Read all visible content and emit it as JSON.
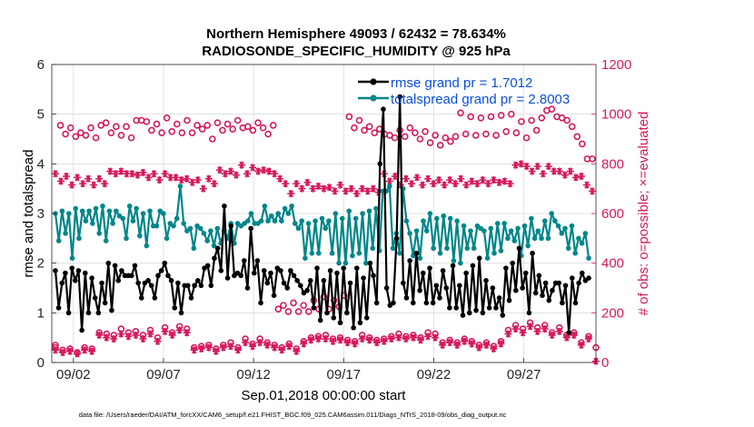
{
  "chart_data": {
    "type": "line",
    "title_line1": "Northern Hemisphere 49093 / 62432 = 78.634%",
    "title_line2": "RADIOSONDE_SPECIFIC_HUMIDITY @ 925 hPa",
    "xlabel": "Sep.01,2018 00:00:00 start",
    "ylabel_left": "rmse and totalspread",
    "ylabel_right": "# of obs: o=possible; ×=evaluated",
    "footer": "data file: /Users/raeder/DAI/ATM_forcXX/CAM6_setup/f.e21.FHIST_BGC.f09_025.CAM6assim.011/Diags_NTrS_2018-09/obs_diag_output.nc",
    "x_tick_labels": [
      "09/02",
      "09/07",
      "09/12",
      "09/17",
      "09/22",
      "09/27"
    ],
    "x_tick_days": [
      2,
      7,
      12,
      17,
      22,
      27
    ],
    "xlim": [
      0.8,
      31.0
    ],
    "ylim_left": [
      0,
      6
    ],
    "ylim_right": [
      0,
      1200
    ],
    "y_ticks_left": [
      "0",
      "1",
      "2",
      "3",
      "4",
      "5",
      "6"
    ],
    "y_ticks_right": [
      "0",
      "200",
      "400",
      "600",
      "800",
      "1000",
      "1200"
    ],
    "colors": {
      "rmse": "#000000",
      "spread": "#00868b",
      "obs": "#d6185b",
      "legend_text": "#0a4fd6"
    },
    "legend": [
      {
        "name": "rmse grand pr = 1.7012"
      },
      {
        "name": "totalspread grand pr = 2.8003"
      }
    ],
    "series": [
      {
        "name": "rmse",
        "axis": "left",
        "values": [
          1.85,
          1.1,
          1.6,
          1.8,
          1.0,
          1.9,
          1.65,
          1.85,
          0.65,
          1.8,
          1.0,
          1.7,
          1.3,
          1.0,
          1.6,
          1.2,
          2.0,
          1.05,
          1.95,
          1.65,
          1.85,
          1.75,
          1.75,
          1.75,
          1.95,
          1.6,
          1.3,
          1.6,
          1.65,
          1.55,
          1.3,
          1.75,
          1.85,
          2.0,
          1.75,
          1.65,
          1.1,
          1.6,
          1.0,
          1.55,
          1.55,
          1.3,
          1.55,
          1.65,
          1.55,
          1.9,
          1.95,
          1.55,
          2.1,
          2.3,
          1.85,
          3.15,
          1.7,
          2.75,
          1.75,
          1.8,
          1.75,
          2.05,
          1.5,
          2.7,
          1.8,
          2.05,
          1.2,
          1.85,
          1.6,
          1.8,
          1.35,
          1.9,
          1.85,
          1.6,
          1.5,
          1.85,
          1.75,
          1.65,
          1.55,
          1.4,
          1.45,
          1.65,
          1.1,
          1.9,
          0.85,
          1.65,
          1.0,
          1.85,
          0.9,
          1.8,
          0.8,
          1.9,
          1.0,
          1.6,
          0.7,
          1.9,
          0.8,
          1.7,
          0.9,
          2.0,
          1.75,
          1.2,
          4.0,
          5.1,
          1.5,
          1.15,
          1.2,
          2.5,
          5.35,
          1.6,
          1.3,
          2.05,
          1.2,
          2.2,
          1.45,
          1.8,
          1.2,
          1.9,
          1.2,
          1.55,
          1.3,
          1.85,
          1.5,
          1.1,
          1.95,
          1.1,
          1.55,
          0.95,
          1.8,
          1.0,
          1.95,
          1.05,
          2.1,
          1.0,
          1.65,
          1.1,
          1.5,
          1.1,
          1.3,
          0.95,
          1.9,
          1.25,
          2.0,
          1.45,
          2.3,
          1.5,
          1.8,
          1.0,
          2.2,
          1.4,
          1.75,
          1.35,
          1.6,
          1.25,
          1.45,
          1.6,
          1.6,
          1.2,
          1.55,
          0.6,
          1.7,
          1.2,
          1.6,
          1.8,
          1.65,
          1.7
        ]
      },
      {
        "name": "totalspread",
        "axis": "left",
        "values": [
          3.0,
          2.45,
          3.05,
          2.6,
          3.0,
          2.1,
          3.1,
          2.5,
          3.05,
          2.85,
          3.05,
          2.8,
          3.1,
          2.6,
          3.15,
          2.45,
          3.05,
          2.8,
          3.05,
          2.95,
          2.9,
          2.5,
          3.15,
          2.85,
          3.1,
          2.55,
          3.0,
          2.35,
          3.05,
          2.75,
          2.75,
          3.05,
          3.0,
          2.5,
          2.8,
          2.75,
          2.9,
          3.55,
          2.8,
          2.65,
          2.7,
          2.3,
          2.75,
          2.7,
          2.6,
          2.45,
          2.65,
          2.35,
          2.7,
          2.4,
          2.65,
          2.5,
          2.8,
          2.4,
          2.8,
          2.75,
          2.8,
          2.85,
          3.0,
          2.8,
          2.8,
          2.85,
          3.15,
          2.85,
          2.95,
          2.85,
          3.0,
          2.85,
          3.1,
          3.0,
          3.15,
          2.8,
          2.7,
          2.85,
          2.1,
          2.8,
          2.2,
          2.85,
          2.2,
          2.9,
          2.7,
          2.85,
          2.2,
          3.0,
          2.0,
          2.9,
          2.0,
          3.05,
          2.15,
          2.9,
          2.2,
          3.0,
          2.0,
          3.05,
          2.3,
          3.1,
          2.25,
          3.45,
          3.45,
          3.55,
          2.3,
          2.6,
          2.2,
          3.5,
          2.85,
          2.6,
          2.15,
          2.65,
          2.1,
          2.85,
          2.65,
          3.0,
          2.3,
          2.9,
          2.2,
          2.95,
          2.3,
          2.9,
          2.05,
          2.85,
          2.0,
          2.75,
          2.3,
          2.65,
          2.3,
          2.75,
          2.7,
          2.65,
          2.1,
          2.7,
          2.2,
          2.8,
          2.25,
          2.8,
          2.5,
          2.65,
          2.45,
          2.7,
          2.15,
          2.75,
          2.35,
          2.9,
          2.5,
          2.65,
          2.5,
          2.85,
          2.5,
          3.0,
          2.85,
          2.75,
          2.6,
          2.7,
          2.3,
          2.75,
          2.2,
          2.5,
          2.4,
          2.6,
          2.1
        ]
      },
      {
        "name": "obs possible",
        "axis": "right",
        "values": [
          70,
          955,
          920,
          945,
          910,
          925,
          915,
          945,
          905,
          955,
          965,
          925,
          950,
          915,
          950,
          905,
          975,
          975,
          970,
          935,
          960,
          925,
          985,
          930,
          960,
          925,
          975,
          925,
          955,
          940,
          955,
          900,
          965,
          935,
          960,
          940,
          975,
          945,
          950,
          935,
          965,
          945,
          920,
          955,
          215,
          230,
          205,
          240,
          205,
          230,
          205,
          250,
          215,
          265,
          215,
          250,
          225,
          270,
          990,
          945,
          975,
          935,
          950,
          925,
          940,
          920,
          915,
          905,
          935,
          910,
          945,
          925,
          900,
          930,
          885,
          915,
          875,
          905,
          890,
          910,
          1005,
          920,
          990,
          915,
          985,
          920,
          990,
          915,
          995,
          930,
          1000,
          925,
          970,
          905,
          975,
          935,
          985,
          1015,
          1020,
          990,
          985,
          975,
          950,
          910,
          880,
          820,
          820
        ]
      },
      {
        "name": "obs evaluated",
        "axis": "right",
        "values": [
          760,
          730,
          750,
          715,
          745,
          720,
          740,
          715,
          740,
          720,
          770,
          760,
          770,
          760,
          760,
          755,
          765,
          745,
          760,
          735,
          760,
          745,
          745,
          735,
          740,
          725,
          735,
          700,
          740,
          720,
          775,
          760,
          770,
          755,
          795,
          760,
          785,
          770,
          775,
          770,
          760,
          740,
          720,
          680,
          720,
          700,
          725,
          700,
          710,
          700,
          705,
          690,
          715,
          690,
          700,
          680,
          700,
          690,
          700,
          685,
          760,
          730,
          750,
          715,
          740,
          720,
          745,
          715,
          740,
          720,
          735,
          715,
          735,
          720,
          740,
          715,
          730,
          720,
          735,
          720,
          735,
          725,
          730,
          720,
          795,
          800,
          790,
          770,
          790,
          760,
          790,
          770,
          770,
          755,
          770,
          745,
          750,
          715,
          690
        ]
      }
    ],
    "obs_low_band": {
      "axis": "right",
      "possible": [
        60,
        50,
        55,
        40,
        60,
        55,
        120,
        115,
        110,
        135,
        120,
        125,
        110,
        130,
        100,
        140,
        120,
        145,
        135,
        60,
        65,
        70,
        55,
        70,
        80,
        60,
        95,
        75,
        95,
        80,
        70,
        60,
        75,
        55,
        85,
        100,
        105,
        110,
        95,
        100,
        90,
        85,
        110,
        100,
        90,
        95,
        105,
        115,
        105,
        110,
        100,
        120,
        115,
        80,
        90,
        80,
        95,
        85,
        70,
        80,
        65,
        85,
        130,
        150,
        135,
        160,
        140,
        150,
        120,
        140,
        110,
        120,
        80,
        105,
        60
      ],
      "evaluated": [
        50,
        40,
        45,
        35,
        50,
        45,
        110,
        100,
        95,
        115,
        105,
        110,
        95,
        115,
        85,
        125,
        110,
        130,
        120,
        50,
        55,
        60,
        45,
        60,
        65,
        50,
        80,
        65,
        80,
        70,
        60,
        50,
        65,
        45,
        75,
        90,
        95,
        95,
        85,
        90,
        80,
        75,
        95,
        90,
        80,
        85,
        95,
        100,
        95,
        100,
        90,
        105,
        100,
        70,
        80,
        70,
        85,
        75,
        60,
        70,
        55,
        75,
        115,
        135,
        120,
        145,
        125,
        135,
        110,
        125,
        100,
        110,
        70,
        95,
        5
      ]
    }
  }
}
